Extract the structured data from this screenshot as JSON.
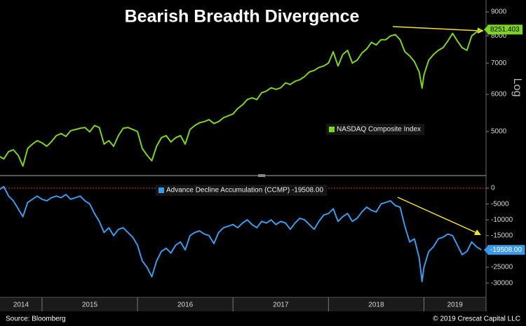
{
  "chart_data": [
    {
      "type": "line",
      "title": "Bearish Breadth Divergence",
      "y_label": "Log",
      "log": true,
      "legend": "right",
      "x": [
        2014.55,
        2014.6,
        2014.65,
        2014.7,
        2014.75,
        2014.8,
        2014.85,
        2014.9,
        2014.95,
        2015.0,
        2015.05,
        2015.1,
        2015.15,
        2015.2,
        2015.25,
        2015.3,
        2015.35,
        2015.4,
        2015.45,
        2015.5,
        2015.55,
        2015.6,
        2015.65,
        2015.7,
        2015.75,
        2015.8,
        2015.85,
        2015.9,
        2015.95,
        2016.0,
        2016.05,
        2016.1,
        2016.15,
        2016.2,
        2016.25,
        2016.3,
        2016.35,
        2016.4,
        2016.45,
        2016.5,
        2016.55,
        2016.6,
        2016.65,
        2016.7,
        2016.75,
        2016.8,
        2016.85,
        2016.9,
        2016.95,
        2017.0,
        2017.05,
        2017.1,
        2017.15,
        2017.2,
        2017.25,
        2017.3,
        2017.35,
        2017.4,
        2017.45,
        2017.5,
        2017.55,
        2017.6,
        2017.65,
        2017.7,
        2017.75,
        2017.8,
        2017.85,
        2017.9,
        2017.95,
        2018.0,
        2018.05,
        2018.1,
        2018.15,
        2018.2,
        2018.25,
        2018.3,
        2018.35,
        2018.4,
        2018.45,
        2018.5,
        2018.55,
        2018.6,
        2018.65,
        2018.7,
        2018.75,
        2018.8,
        2018.85,
        2018.9,
        2018.95,
        2018.98,
        2019.0,
        2019.05,
        2019.1,
        2019.15,
        2019.2,
        2019.25,
        2019.3,
        2019.35,
        2019.4,
        2019.45,
        2019.5,
        2019.55,
        2019.6
      ],
      "xlim": [
        2014.56,
        2019.65
      ],
      "ylim": [
        4040,
        9380
      ],
      "yticks": [
        5000,
        6000,
        7000,
        8000,
        9000
      ],
      "series": [
        {
          "name": "NASDAQ Composite Index",
          "color": "#7ed321",
          "values": [
            4430,
            4370,
            4530,
            4570,
            4450,
            4220,
            4600,
            4700,
            4780,
            4730,
            4650,
            4760,
            4900,
            4950,
            4880,
            5020,
            5050,
            5080,
            5100,
            4990,
            5150,
            5100,
            4700,
            4780,
            4650,
            4900,
            5080,
            5100,
            5050,
            5000,
            4600,
            4450,
            4330,
            4650,
            4850,
            4900,
            4750,
            4850,
            4900,
            4700,
            5050,
            5150,
            5220,
            5250,
            5300,
            5200,
            5250,
            5350,
            5400,
            5450,
            5600,
            5700,
            5850,
            5900,
            5850,
            6050,
            6100,
            6200,
            6150,
            6200,
            6350,
            6300,
            6400,
            6450,
            6550,
            6700,
            6750,
            6850,
            6900,
            7000,
            7400,
            6900,
            7300,
            7450,
            7000,
            7100,
            7350,
            7500,
            7750,
            7650,
            7850,
            7850,
            8000,
            8050,
            7850,
            7400,
            7250,
            7050,
            6700,
            6190,
            6600,
            7100,
            7300,
            7450,
            7550,
            7800,
            8100,
            7800,
            7550,
            7450,
            8000,
            8150,
            8251.403
          ]
        }
      ]
    },
    {
      "type": "line",
      "legend": "top-left",
      "ref_line": 0,
      "ref_color": "#c0392b",
      "x": [
        2014.55,
        2014.6,
        2014.65,
        2014.7,
        2014.75,
        2014.8,
        2014.85,
        2014.9,
        2014.95,
        2015.0,
        2015.05,
        2015.1,
        2015.15,
        2015.2,
        2015.25,
        2015.3,
        2015.35,
        2015.4,
        2015.45,
        2015.5,
        2015.55,
        2015.6,
        2015.65,
        2015.7,
        2015.75,
        2015.8,
        2015.85,
        2015.9,
        2015.95,
        2016.0,
        2016.05,
        2016.1,
        2016.15,
        2016.2,
        2016.25,
        2016.3,
        2016.35,
        2016.4,
        2016.45,
        2016.5,
        2016.55,
        2016.6,
        2016.65,
        2016.7,
        2016.75,
        2016.8,
        2016.85,
        2016.9,
        2016.95,
        2017.0,
        2017.05,
        2017.1,
        2017.15,
        2017.2,
        2017.25,
        2017.3,
        2017.35,
        2017.4,
        2017.45,
        2017.5,
        2017.55,
        2017.6,
        2017.65,
        2017.7,
        2017.75,
        2017.8,
        2017.85,
        2017.9,
        2017.95,
        2018.0,
        2018.05,
        2018.1,
        2018.15,
        2018.2,
        2018.25,
        2018.3,
        2018.35,
        2018.4,
        2018.45,
        2018.5,
        2018.55,
        2018.6,
        2018.65,
        2018.7,
        2018.75,
        2018.8,
        2018.85,
        2018.9,
        2018.95,
        2018.98,
        2019.0,
        2019.05,
        2019.1,
        2019.15,
        2019.2,
        2019.25,
        2019.3,
        2019.35,
        2019.4,
        2019.45,
        2019.5,
        2019.55,
        2019.6
      ],
      "xlim": [
        2014.56,
        2019.65
      ],
      "xticks": [
        2014,
        2015,
        2016,
        2017,
        2018,
        2019
      ],
      "ylim": [
        -34500,
        3100
      ],
      "yticks": [
        0,
        -5000,
        -10000,
        -15000,
        -20000,
        -25000,
        -30000
      ],
      "series": [
        {
          "name": "Advance Decline Accumulation (CCMP) -19508.00",
          "color": "#3a9ae8",
          "values": [
            -500,
            500,
            -2500,
            -4000,
            -6500,
            -9000,
            -4500,
            -3500,
            -2500,
            -3500,
            -4000,
            -3000,
            -2500,
            -3000,
            -2000,
            -3500,
            -3000,
            -2500,
            -4000,
            -5000,
            -8000,
            -10500,
            -14000,
            -12500,
            -15000,
            -13000,
            -12500,
            -14000,
            -15500,
            -18000,
            -23000,
            -25000,
            -28000,
            -23000,
            -20000,
            -19000,
            -20500,
            -18000,
            -17000,
            -19500,
            -15000,
            -14000,
            -13500,
            -14500,
            -15000,
            -17500,
            -14000,
            -12500,
            -12000,
            -11500,
            -12500,
            -11000,
            -10000,
            -11500,
            -12500,
            -10500,
            -11000,
            -10000,
            -11500,
            -10500,
            -11000,
            -13000,
            -11000,
            -9500,
            -10000,
            -11500,
            -13000,
            -10500,
            -8500,
            -8000,
            -6500,
            -10500,
            -9000,
            -8000,
            -10500,
            -9500,
            -7500,
            -6000,
            -7000,
            -7500,
            -5000,
            -4500,
            -4000,
            -5500,
            -6000,
            -12000,
            -17000,
            -16000,
            -22000,
            -29500,
            -25000,
            -20000,
            -18500,
            -16000,
            -15500,
            -14500,
            -15000,
            -18000,
            -21000,
            -20000,
            -17000,
            -18500,
            -19508
          ],
          "value_labels": [
            null,
            null,
            null,
            null,
            null,
            null,
            null,
            null,
            null,
            null,
            null,
            null,
            null,
            null,
            null,
            null,
            null,
            null,
            null,
            null,
            null,
            null,
            null,
            null,
            null,
            null,
            null,
            null,
            null,
            null,
            null,
            null,
            null,
            null,
            null,
            null,
            null,
            null,
            null,
            null,
            null,
            null,
            null,
            null,
            null,
            null,
            null,
            null,
            null,
            null,
            null,
            null,
            null,
            null,
            null,
            null,
            null,
            null,
            null,
            null,
            null,
            null,
            null,
            null,
            null,
            null,
            null,
            null,
            null,
            null,
            null,
            null,
            null,
            null,
            null,
            null,
            null,
            null,
            null,
            null,
            null,
            null,
            null,
            null,
            null,
            null,
            null,
            null,
            null,
            null,
            null,
            null,
            null,
            null,
            null,
            null,
            null,
            null,
            null,
            null,
            null,
            null,
            "-19508.00"
          ]
        }
      ]
    }
  ],
  "source": "Source: Bloomberg",
  "copyright": "© 2019 Crescat Capital LLC"
}
